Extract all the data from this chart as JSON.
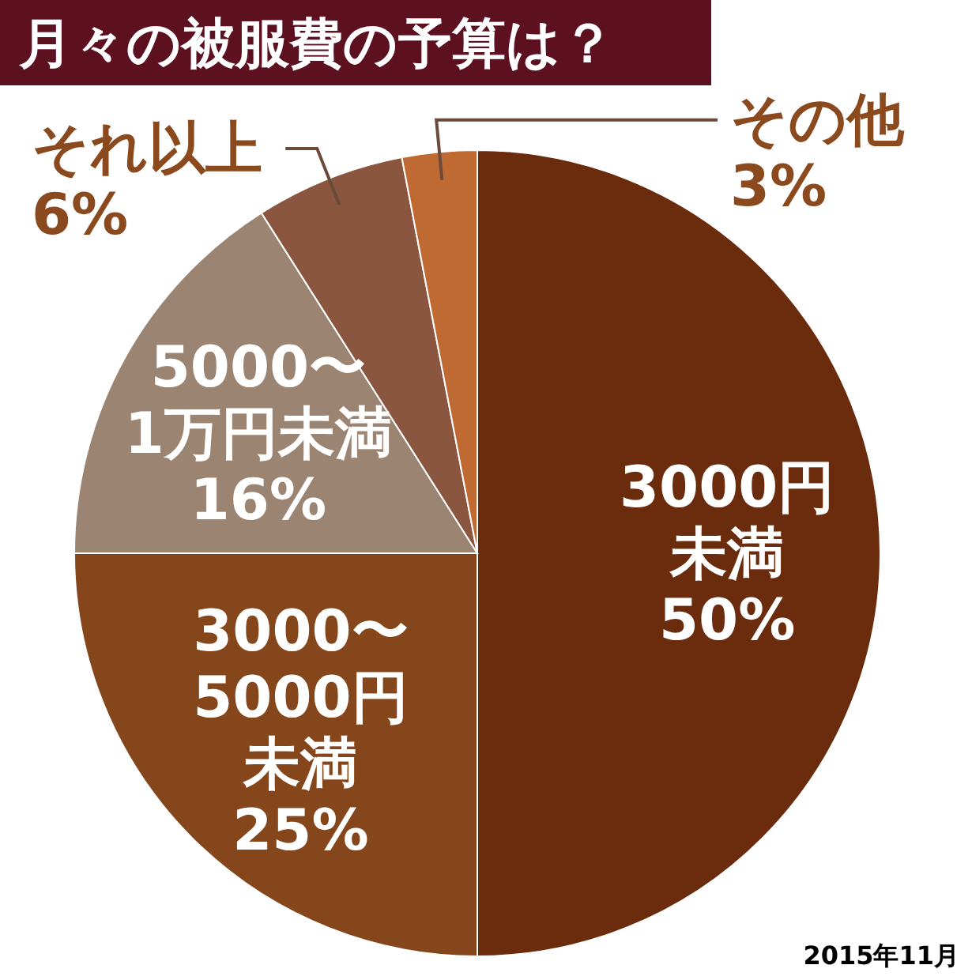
{
  "chart_data": {
    "type": "pie",
    "title": "月々の被服費の予算は？",
    "categories": [
      "3000円未満",
      "3000〜5000円未満",
      "5000〜1万円未満",
      "それ以上",
      "その他"
    ],
    "values": [
      50,
      25,
      16,
      6,
      3
    ],
    "value_labels": [
      "50%",
      "25%",
      "16%",
      "6%",
      "3%"
    ],
    "colors": [
      "#6a2c0c",
      "#86461c",
      "#9c8473",
      "#8a5640",
      "#bf6a32"
    ],
    "annotations": [
      "2015年11月"
    ]
  }
}
